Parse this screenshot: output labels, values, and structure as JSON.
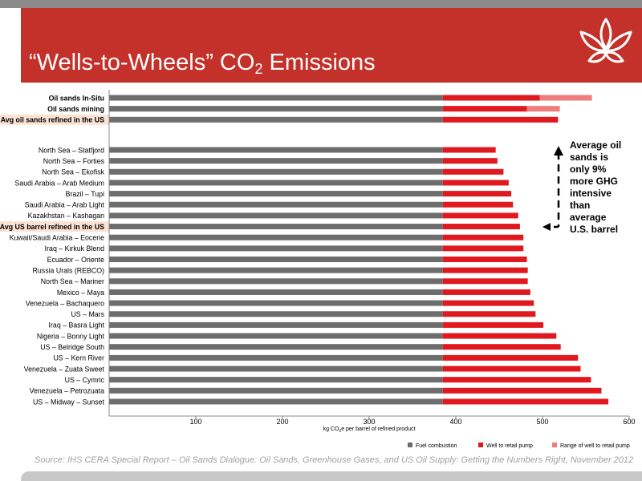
{
  "slide": {
    "title_main": "“Wells-to-Wheels” CO",
    "title_sub": "2",
    "title_end": " Emissions",
    "source": "Source: IHS CERA Special Report – Oil Sands Dialogue: Oil Sands, Greenhouse Gases, and US Oil Supply: Getting the Numbers Right, November 2012",
    "annotation_lines": [
      "Average oil",
      "sands is",
      "only 9%",
      "more GHG",
      "intensive",
      "than",
      "average",
      "U.S. barrel"
    ],
    "colors": {
      "header": "#c3312a",
      "fuel": "#6d6d6d",
      "well": "#e0191f",
      "range": "#ef7c7e",
      "highlight": "#fbe3d3"
    }
  },
  "chart_data": {
    "type": "bar",
    "orientation": "horizontal",
    "stacked": true,
    "xlabel_main": "kg CO",
    "xlabel_sub": "2",
    "xlabel_end": "e per barrel of refined product",
    "xlim": [
      0,
      600
    ],
    "xticks": [
      100,
      200,
      300,
      400,
      500,
      600
    ],
    "grid": false,
    "legend_position": "bottom-right",
    "series_names": [
      "Fuel combustion",
      "Well to retail pump",
      "Range of well to retail pump"
    ],
    "groups": [
      {
        "rows": [
          {
            "label": "Oil sands In-Situ",
            "bold": true,
            "highlight": false,
            "fuel": 385,
            "well": 112,
            "range": 60
          },
          {
            "label": "Oil sands mining",
            "bold": true,
            "highlight": false,
            "fuel": 385,
            "well": 97,
            "range": 38
          },
          {
            "label": "Avg oil sands refined in the US",
            "bold": true,
            "highlight": true,
            "fuel": 385,
            "well": 133,
            "range": 0
          }
        ]
      },
      {
        "rows": [
          {
            "label": "North Sea – Statfjord",
            "bold": false,
            "highlight": false,
            "fuel": 385,
            "well": 61,
            "range": 0
          },
          {
            "label": "North Sea – Forties",
            "bold": false,
            "highlight": false,
            "fuel": 385,
            "well": 63,
            "range": 0
          },
          {
            "label": "North Sea – Ekofisk",
            "bold": false,
            "highlight": false,
            "fuel": 385,
            "well": 70,
            "range": 0
          },
          {
            "label": "Saudi Arabia – Arab Medium",
            "bold": false,
            "highlight": false,
            "fuel": 385,
            "well": 76,
            "range": 0
          },
          {
            "label": "Brazil – Tupi",
            "bold": false,
            "highlight": false,
            "fuel": 385,
            "well": 79,
            "range": 0
          },
          {
            "label": "Saudi Arabia – Arab Light",
            "bold": false,
            "highlight": false,
            "fuel": 385,
            "well": 81,
            "range": 0
          },
          {
            "label": "Kazakhstan – Kashagan",
            "bold": false,
            "highlight": false,
            "fuel": 385,
            "well": 87,
            "range": 0
          },
          {
            "label": "Avg US barrel refined in the US",
            "bold": true,
            "highlight": true,
            "fuel": 385,
            "well": 89,
            "range": 0
          },
          {
            "label": "Kuwait/Saudi Arabia – Eocene",
            "bold": false,
            "highlight": false,
            "fuel": 385,
            "well": 93,
            "range": 0
          },
          {
            "label": "Iraq – Kirkuk Blend",
            "bold": false,
            "highlight": false,
            "fuel": 385,
            "well": 93,
            "range": 0
          },
          {
            "label": "Ecuador – Oriente",
            "bold": false,
            "highlight": false,
            "fuel": 385,
            "well": 97,
            "range": 0
          },
          {
            "label": "Russia Urals (REBCO)",
            "bold": false,
            "highlight": false,
            "fuel": 385,
            "well": 98,
            "range": 0
          },
          {
            "label": "North Sea – Mariner",
            "bold": false,
            "highlight": false,
            "fuel": 385,
            "well": 98,
            "range": 0
          },
          {
            "label": "Mexico – Maya",
            "bold": false,
            "highlight": false,
            "fuel": 385,
            "well": 101,
            "range": 0
          },
          {
            "label": "Venezuela – Bachaquero",
            "bold": false,
            "highlight": false,
            "fuel": 385,
            "well": 105,
            "range": 0
          },
          {
            "label": "US – Mars",
            "bold": false,
            "highlight": false,
            "fuel": 385,
            "well": 107,
            "range": 0
          },
          {
            "label": "Iraq – Basra Light",
            "bold": false,
            "highlight": false,
            "fuel": 385,
            "well": 116,
            "range": 0
          },
          {
            "label": "Nigeria – Bonny Light",
            "bold": false,
            "highlight": false,
            "fuel": 385,
            "well": 131,
            "range": 0
          },
          {
            "label": "US – Belridge South",
            "bold": false,
            "highlight": false,
            "fuel": 385,
            "well": 136,
            "range": 0
          },
          {
            "label": "US – Kern River",
            "bold": false,
            "highlight": false,
            "fuel": 385,
            "well": 156,
            "range": 0
          },
          {
            "label": "Venezuela – Zuata Sweet",
            "bold": false,
            "highlight": false,
            "fuel": 385,
            "well": 159,
            "range": 0
          },
          {
            "label": "US – Cymric",
            "bold": false,
            "highlight": false,
            "fuel": 385,
            "well": 171,
            "range": 0
          },
          {
            "label": "Venezuela – Petrozuata",
            "bold": false,
            "highlight": false,
            "fuel": 385,
            "well": 183,
            "range": 0
          },
          {
            "label": "US – Midway – Sunset",
            "bold": false,
            "highlight": false,
            "fuel": 385,
            "well": 191,
            "range": 0
          }
        ]
      }
    ]
  }
}
